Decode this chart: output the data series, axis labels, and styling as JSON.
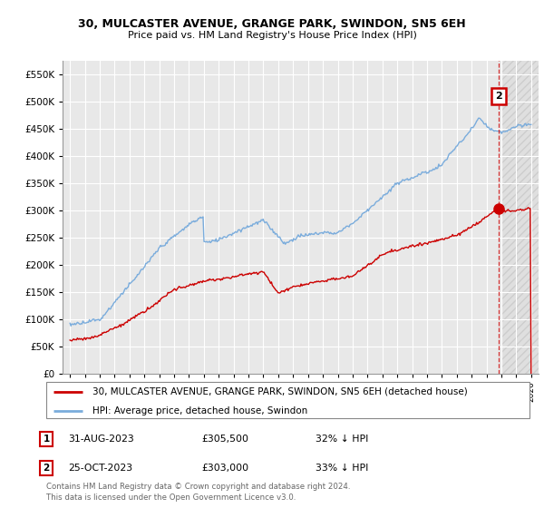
{
  "title": "30, MULCASTER AVENUE, GRANGE PARK, SWINDON, SN5 6EH",
  "subtitle": "Price paid vs. HM Land Registry's House Price Index (HPI)",
  "legend_label_red": "30, MULCASTER AVENUE, GRANGE PARK, SWINDON, SN5 6EH (detached house)",
  "legend_label_blue": "HPI: Average price, detached house, Swindon",
  "table_rows": [
    [
      "1",
      "31-AUG-2023",
      "£305,500",
      "32% ↓ HPI"
    ],
    [
      "2",
      "25-OCT-2023",
      "£303,000",
      "33% ↓ HPI"
    ]
  ],
  "footnote": "Contains HM Land Registry data © Crown copyright and database right 2024.\nThis data is licensed under the Open Government Licence v3.0.",
  "ylim": [
    0,
    575000
  ],
  "yticks": [
    0,
    50000,
    100000,
    150000,
    200000,
    250000,
    300000,
    350000,
    400000,
    450000,
    500000,
    550000
  ],
  "red_color": "#cc0000",
  "blue_color": "#7aacdc",
  "hatch_color": "#cccccc",
  "grid_color": "#ffffff",
  "bg_color": "#e8e8e8"
}
